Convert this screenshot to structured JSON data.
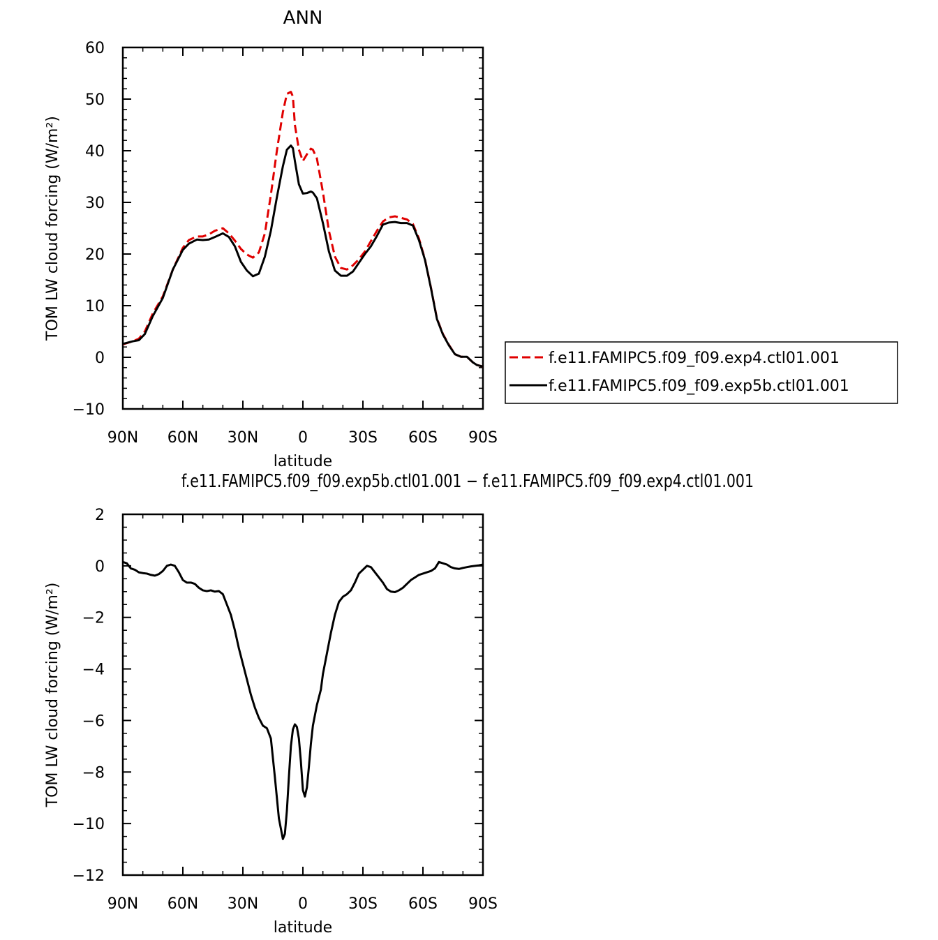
{
  "chart_data": [
    {
      "type": "line",
      "title": "ANN",
      "xlabel": "latitude",
      "ylabel": "TOM LW cloud forcing (W/m²)",
      "xlim": [
        90,
        -90
      ],
      "ylim": [
        -10,
        60
      ],
      "x_ticks": [
        90,
        60,
        30,
        0,
        -30,
        -60,
        -90
      ],
      "x_tick_labels": [
        "90N",
        "60N",
        "30N",
        "0",
        "30S",
        "60S",
        "90S"
      ],
      "y_ticks": [
        -10,
        0,
        10,
        20,
        30,
        40,
        50,
        60
      ],
      "y_tick_labels": [
        "−10",
        "0",
        "10",
        "20",
        "30",
        "40",
        "50",
        "60"
      ],
      "legend_position": "right",
      "grid": false,
      "series": [
        {
          "name": "f.e11.FAMIPC5.f09_f09.exp4.ctl01.001",
          "color": "#e00000",
          "dash": "dashed",
          "x": [
            90,
            85,
            82,
            79,
            75,
            70,
            65,
            60,
            57,
            53,
            50,
            47,
            44,
            40,
            37,
            34,
            31,
            28,
            25,
            22,
            19,
            16,
            13,
            10,
            8,
            6,
            5,
            4,
            2,
            0,
            -2,
            -4,
            -5,
            -7,
            -10,
            -13,
            -16,
            -19,
            -22,
            -25,
            -28,
            -31,
            -34,
            -37,
            -40,
            -43,
            -46,
            -49,
            -52,
            -55,
            -58,
            -61,
            -64,
            -67,
            -70,
            -73,
            -76,
            -79,
            -82,
            -85,
            -87,
            -90
          ],
          "y": [
            2.5,
            3.1,
            3.6,
            5,
            8.5,
            11.8,
            17,
            21.2,
            22.7,
            23.4,
            23.4,
            23.8,
            24.5,
            25,
            24,
            22.6,
            21,
            19.9,
            19.3,
            20.3,
            24,
            31.5,
            40,
            47.5,
            51,
            51.4,
            50.5,
            45,
            40.2,
            38,
            39.3,
            40.4,
            40.2,
            38.5,
            32,
            24.5,
            19.5,
            17.3,
            17,
            17.8,
            19,
            20.5,
            22.5,
            24.5,
            26.3,
            27.1,
            27.3,
            27,
            26.7,
            25.8,
            23,
            19,
            13.5,
            7.5,
            4.5,
            2.4,
            0.6,
            0.1,
            0.1,
            -1,
            -1.5,
            -1.8
          ]
        },
        {
          "name": "f.e11.FAMIPC5.f09_f09.exp5b.ctl01.001",
          "color": "#000000",
          "dash": "solid",
          "x": [
            90,
            85,
            82,
            79,
            75,
            70,
            65,
            60,
            57,
            53,
            50,
            47,
            44,
            40,
            37,
            34,
            31,
            28,
            25,
            22,
            19,
            16,
            13,
            10,
            8,
            6,
            5,
            4,
            2,
            0,
            -2,
            -4,
            -5,
            -7,
            -10,
            -13,
            -16,
            -19,
            -22,
            -25,
            -28,
            -31,
            -34,
            -37,
            -40,
            -43,
            -46,
            -49,
            -52,
            -55,
            -58,
            -61,
            -64,
            -67,
            -70,
            -73,
            -76,
            -79,
            -82,
            -85,
            -87,
            -90
          ],
          "y": [
            2.6,
            3.1,
            3.3,
            4.5,
            8,
            11.5,
            17,
            20.8,
            22,
            22.8,
            22.7,
            22.8,
            23.3,
            24,
            23.3,
            21.5,
            18.5,
            16.8,
            15.7,
            16.2,
            19.5,
            24.5,
            31,
            37,
            40.2,
            41,
            40.5,
            38,
            33.5,
            31.7,
            31.8,
            32.1,
            31.9,
            30.8,
            26,
            20.5,
            16.8,
            15.8,
            15.8,
            16.6,
            18.3,
            20,
            21.5,
            23.5,
            25.7,
            26.1,
            26.2,
            26,
            26,
            25.5,
            22.7,
            18.9,
            13.4,
            7.4,
            4.4,
            2.3,
            0.6,
            0.1,
            0.1,
            -1,
            -1.5,
            -1.8
          ]
        }
      ]
    },
    {
      "type": "line",
      "title": "f.e11.FAMIPC5.f09_f09.exp5b.ctl01.001 − f.e11.FAMIPC5.f09_f09.exp4.ctl01.001",
      "xlabel": "latitude",
      "ylabel": "TOM LW cloud forcing (W/m²)",
      "xlim": [
        90,
        -90
      ],
      "ylim": [
        -12,
        2
      ],
      "x_ticks": [
        90,
        60,
        30,
        0,
        -30,
        -60,
        -90
      ],
      "x_tick_labels": [
        "90N",
        "60N",
        "30N",
        "0",
        "30S",
        "60S",
        "90S"
      ],
      "y_ticks": [
        -12,
        -10,
        -8,
        -6,
        -4,
        -2,
        0,
        2
      ],
      "y_tick_labels": [
        "−12",
        "−10",
        "−8",
        "−6",
        "−4",
        "−2",
        "0",
        "2"
      ],
      "grid": false,
      "series": [
        {
          "color": "#000000",
          "dash": "solid",
          "x": [
            90,
            88,
            86,
            84,
            82,
            80,
            78,
            76,
            74,
            72,
            70,
            68,
            66,
            64,
            62,
            60,
            58,
            56,
            54,
            52,
            50,
            48,
            46,
            44,
            42,
            40,
            38,
            36,
            34,
            32,
            30,
            28,
            26,
            24,
            22,
            20,
            18,
            16,
            14,
            12,
            10,
            9,
            8,
            7,
            6,
            5,
            4,
            3,
            2,
            1,
            0,
            -1,
            -2,
            -3,
            -4,
            -5,
            -6,
            -7,
            -8,
            -9,
            -10,
            -12,
            -14,
            -16,
            -18,
            -20,
            -22,
            -24,
            -26,
            -28,
            -30,
            -32,
            -34,
            -36,
            -38,
            -40,
            -42,
            -44,
            -46,
            -48,
            -50,
            -52,
            -54,
            -56,
            -58,
            -60,
            -62,
            -64,
            -66,
            -68,
            -70,
            -72,
            -74,
            -76,
            -78,
            -80,
            -82,
            -84,
            -86,
            -88,
            -90
          ],
          "y": [
            0.15,
            0.1,
            -0.1,
            -0.15,
            -0.25,
            -0.28,
            -0.3,
            -0.35,
            -0.38,
            -0.32,
            -0.2,
            0.0,
            0.05,
            0.0,
            -0.25,
            -0.55,
            -0.65,
            -0.65,
            -0.7,
            -0.85,
            -0.95,
            -0.98,
            -0.95,
            -1.0,
            -0.98,
            -1.1,
            -1.5,
            -1.9,
            -2.5,
            -3.2,
            -3.8,
            -4.4,
            -5.0,
            -5.5,
            -5.9,
            -6.2,
            -6.3,
            -6.7,
            -8.2,
            -9.8,
            -10.6,
            -10.4,
            -9.5,
            -8.2,
            -7.0,
            -6.35,
            -6.15,
            -6.25,
            -6.7,
            -7.6,
            -8.7,
            -8.95,
            -8.6,
            -7.8,
            -6.9,
            -6.2,
            -5.8,
            -5.4,
            -5.1,
            -4.8,
            -4.2,
            -3.4,
            -2.6,
            -1.9,
            -1.4,
            -1.2,
            -1.1,
            -0.95,
            -0.65,
            -0.3,
            -0.15,
            0.0,
            -0.05,
            -0.25,
            -0.45,
            -0.65,
            -0.9,
            -1.0,
            -1.02,
            -0.95,
            -0.85,
            -0.7,
            -0.55,
            -0.45,
            -0.35,
            -0.3,
            -0.25,
            -0.2,
            -0.1,
            0.15,
            0.1,
            0.05,
            -0.05,
            -0.1,
            -0.12,
            -0.08,
            -0.05,
            -0.02,
            0.0,
            0.02,
            0.05
          ]
        }
      ]
    }
  ]
}
